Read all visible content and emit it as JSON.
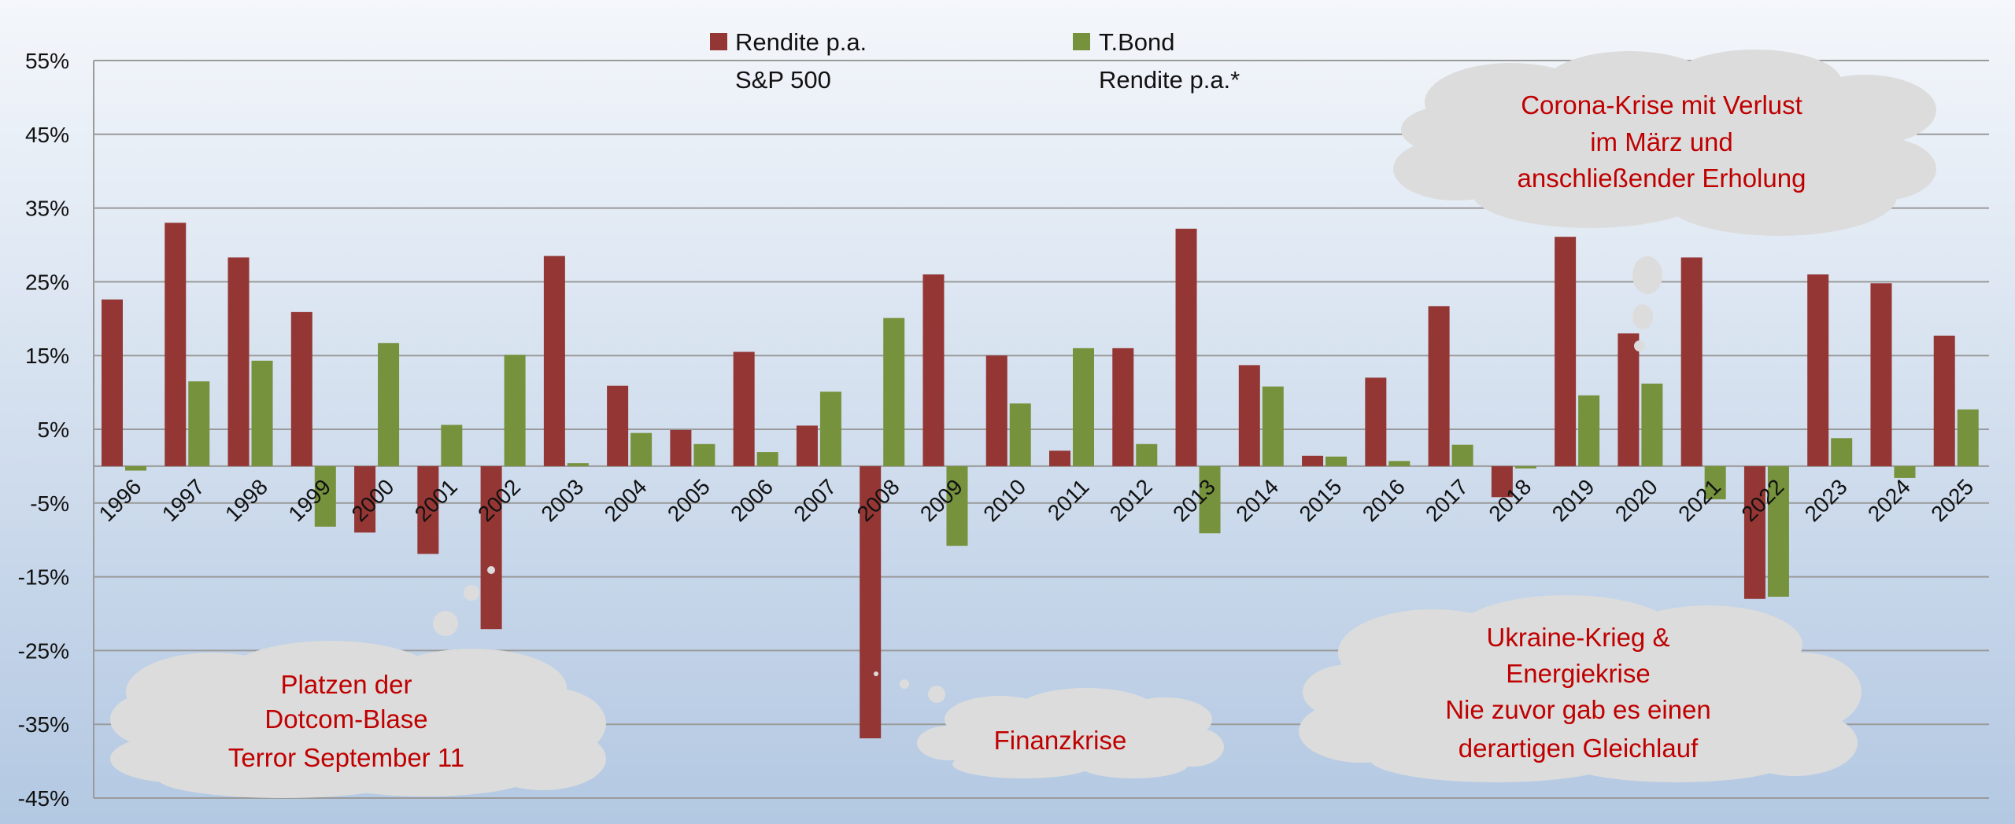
{
  "chart_data": {
    "type": "bar",
    "title": "",
    "xlabel": "",
    "ylabel": "",
    "ylim": [
      -45,
      55
    ],
    "yticks": [
      "55%",
      "45%",
      "35%",
      "25%",
      "15%",
      "5%",
      "-5%",
      "-15%",
      "-25%",
      "-35%",
      "-45%"
    ],
    "ytick_values": [
      55,
      45,
      35,
      25,
      15,
      5,
      -5,
      -15,
      -25,
      -35,
      -45
    ],
    "grid": true,
    "legend_position": "top-center",
    "categories": [
      "1996",
      "1997",
      "1998",
      "1999",
      "2000",
      "2001",
      "2002",
      "2003",
      "2004",
      "2005",
      "2006",
      "2007",
      "2008",
      "2009",
      "2010",
      "2011",
      "2012",
      "2013",
      "2014",
      "2015",
      "2016",
      "2017",
      "2018",
      "2019",
      "2020",
      "2021",
      "2022",
      "2023",
      "2024",
      "2025"
    ],
    "series": [
      {
        "name": "Rendite p.a.",
        "name_line2": "S&P 500",
        "color": "#943634",
        "values": [
          22.6,
          33.0,
          28.3,
          20.9,
          -9.0,
          -11.9,
          -22.1,
          28.5,
          10.9,
          4.9,
          15.5,
          5.5,
          -36.9,
          26.0,
          15.0,
          2.1,
          16.0,
          32.2,
          13.7,
          1.4,
          12.0,
          21.7,
          -4.2,
          31.1,
          18.0,
          28.3,
          -18.0,
          26.0,
          24.8,
          17.7
        ]
      },
      {
        "name": "T.Bond",
        "name_line2": "Rendite p.a.*",
        "color": "#76923c",
        "values": [
          -0.6,
          11.5,
          14.3,
          -8.2,
          16.7,
          5.6,
          15.1,
          0.4,
          4.5,
          3.0,
          1.9,
          10.1,
          20.1,
          -10.8,
          8.5,
          16.0,
          3.0,
          -9.1,
          10.8,
          1.3,
          0.7,
          2.9,
          -0.3,
          9.6,
          11.2,
          -4.5,
          -17.7,
          3.8,
          -1.6,
          7.7
        ]
      }
    ],
    "annotations": {
      "dotcom": [
        "Platzen der",
        "Dotcom-Blase",
        "Terror September 11"
      ],
      "finanz": [
        "Finanzkrise"
      ],
      "corona": [
        "Corona-Krise mit Verlust",
        "im März und",
        "anschließender Erholung"
      ],
      "ukraine": [
        "Ukraine-Krieg &",
        "Energiekrise",
        "Nie zuvor gab es einen",
        "derartigen Gleichlauf"
      ]
    }
  }
}
